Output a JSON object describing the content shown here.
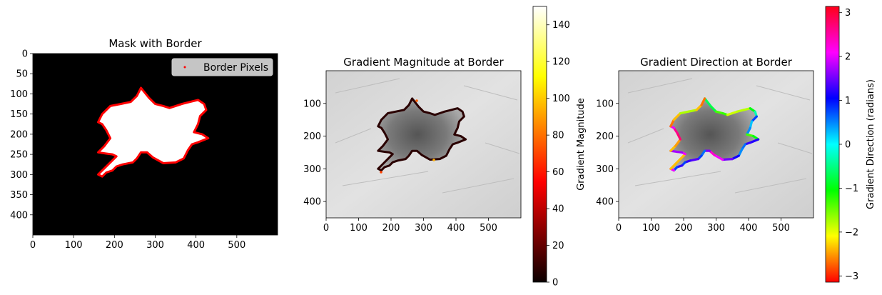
{
  "chart_data": [
    {
      "type": "image",
      "title": "Mask with Border",
      "xlim": [
        0,
        600
      ],
      "ylim": [
        450,
        0
      ],
      "xticks": [
        0,
        100,
        200,
        300,
        400,
        500
      ],
      "yticks": [
        0,
        50,
        100,
        150,
        200,
        250,
        300,
        350,
        400
      ],
      "background": "#000000",
      "mask_color": "#ffffff",
      "border_color": "#ff0000",
      "legend": {
        "label": "Border Pixels",
        "placement": "top-right"
      },
      "border_points": [
        [
          265,
          85
        ],
        [
          285,
          110
        ],
        [
          300,
          125
        ],
        [
          320,
          130
        ],
        [
          335,
          135
        ],
        [
          350,
          130
        ],
        [
          365,
          125
        ],
        [
          385,
          120
        ],
        [
          405,
          115
        ],
        [
          420,
          125
        ],
        [
          425,
          140
        ],
        [
          410,
          155
        ],
        [
          405,
          175
        ],
        [
          395,
          195
        ],
        [
          415,
          200
        ],
        [
          430,
          210
        ],
        [
          405,
          220
        ],
        [
          390,
          225
        ],
        [
          380,
          240
        ],
        [
          370,
          260
        ],
        [
          350,
          270
        ],
        [
          320,
          272
        ],
        [
          295,
          258
        ],
        [
          280,
          245
        ],
        [
          265,
          245
        ],
        [
          255,
          260
        ],
        [
          245,
          270
        ],
        [
          220,
          275
        ],
        [
          205,
          280
        ],
        [
          195,
          290
        ],
        [
          180,
          295
        ],
        [
          170,
          305
        ],
        [
          160,
          300
        ],
        [
          175,
          285
        ],
        [
          190,
          270
        ],
        [
          205,
          255
        ],
        [
          195,
          250
        ],
        [
          180,
          248
        ],
        [
          160,
          245
        ],
        [
          175,
          230
        ],
        [
          190,
          210
        ],
        [
          180,
          190
        ],
        [
          170,
          175
        ],
        [
          160,
          170
        ],
        [
          170,
          150
        ],
        [
          190,
          130
        ],
        [
          215,
          125
        ],
        [
          240,
          120
        ],
        [
          255,
          105
        ]
      ]
    },
    {
      "type": "image",
      "title": "Gradient Magnitude at Border",
      "xlim": [
        0,
        600
      ],
      "ylim": [
        450,
        0
      ],
      "xticks": [
        0,
        100,
        200,
        300,
        400,
        500
      ],
      "yticks": [
        100,
        200,
        300,
        400
      ],
      "colorbar": {
        "label": "Gradient Magnitude",
        "colormap": "hot",
        "range": [
          0,
          150
        ],
        "ticks": [
          0,
          20,
          40,
          60,
          80,
          100,
          120,
          140
        ]
      }
    },
    {
      "type": "image",
      "title": "Gradient Direction at Border",
      "xlim": [
        0,
        600
      ],
      "ylim": [
        450,
        0
      ],
      "xticks": [
        0,
        100,
        200,
        300,
        400,
        500
      ],
      "yticks": [
        100,
        200,
        300,
        400
      ],
      "colorbar": {
        "label": "Gradient Direction (radians)",
        "colormap": "hsv",
        "range": [
          -3.14159,
          3.14159
        ],
        "ticks": [
          -3,
          -2,
          -1,
          0,
          1,
          2,
          3
        ],
        "tick_labels": [
          "−3",
          "−2",
          "−1",
          "0",
          "1",
          "2",
          "3"
        ]
      }
    }
  ]
}
